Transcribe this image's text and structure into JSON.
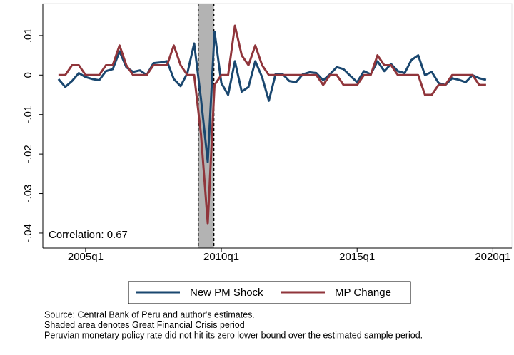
{
  "chart_data": {
    "type": "line",
    "x": [
      176,
      177,
      178,
      179,
      180,
      181,
      182,
      183,
      184,
      185,
      186,
      187,
      188,
      189,
      190,
      191,
      192,
      193,
      194,
      195,
      196,
      197,
      198,
      199,
      200,
      201,
      202,
      203,
      204,
      205,
      206,
      207,
      208,
      209,
      210,
      211,
      212,
      213,
      214,
      215,
      216,
      217,
      218,
      219,
      220,
      221,
      222,
      223,
      224,
      225,
      226,
      227,
      228,
      229,
      230,
      231,
      232,
      233,
      234,
      235,
      236,
      237,
      238,
      239
    ],
    "series": [
      {
        "name": "New PM Shock",
        "color": "#1a476f",
        "values": [
          -0.001,
          -0.003,
          -0.0015,
          0.0005,
          -0.0005,
          -0.001,
          -0.0013,
          0.001,
          0.0015,
          0.006,
          0.002,
          0.0008,
          0.0012,
          0,
          0.003,
          0.0032,
          0.0035,
          -0.001,
          -0.0028,
          0.0005,
          0.008,
          -0.006,
          -0.022,
          0.011,
          -0.002,
          -0.005,
          0.0035,
          -0.0042,
          -0.003,
          0.0035,
          -0.0005,
          -0.0065,
          0.0003,
          0.0003,
          -0.0015,
          -0.0018,
          0.0002,
          0.0007,
          0.0005,
          -0.0013,
          0.0002,
          0.002,
          0.0015,
          -0.0002,
          -0.0018,
          0.001,
          0.0002,
          0.0035,
          0.001,
          0.0028,
          0.001,
          0.0005,
          0.0038,
          0.005,
          0,
          0.0008,
          -0.002,
          -0.0025,
          -0.0008,
          -0.0012,
          -0.0018,
          0,
          -0.0008,
          -0.0012
        ]
      },
      {
        "name": "MP Change",
        "color": "#90353b",
        "values": [
          0,
          0,
          0.0025,
          0.0025,
          0,
          0,
          0,
          0.0025,
          0.0025,
          0.0075,
          0.0025,
          0,
          0,
          0,
          0.0025,
          0.0025,
          0.0025,
          0.0075,
          0.0025,
          0,
          0,
          -0.015,
          -0.0375,
          -0.0025,
          0,
          0,
          0.0125,
          0.005,
          0.0025,
          0.0075,
          0.0025,
          0,
          0,
          0,
          0,
          0,
          0,
          0,
          0,
          -0.0025,
          0,
          0,
          -0.0025,
          -0.0025,
          -0.0025,
          0,
          0,
          0.005,
          0.0025,
          0.0025,
          0,
          0,
          0,
          0,
          -0.005,
          -0.005,
          -0.0025,
          -0.0025,
          0,
          0,
          0,
          0,
          -0.0025,
          -0.0025
        ]
      }
    ],
    "xlim": [
      173.7,
      242.8
    ],
    "xticks": [
      {
        "value": 180,
        "label": "2005q1"
      },
      {
        "value": 200,
        "label": "2010q1"
      },
      {
        "value": 220,
        "label": "2015q1"
      },
      {
        "value": 240,
        "label": "2020q1"
      }
    ],
    "ylim": [
      -0.0438,
      0.0181
    ],
    "yticks": [
      {
        "value": -0.04,
        "label": "-.04"
      },
      {
        "value": -0.03,
        "label": "-.03"
      },
      {
        "value": -0.02,
        "label": "-.02"
      },
      {
        "value": -0.01,
        "label": "-.01"
      },
      0,
      {
        "value": 0.01,
        "label": ".01"
      }
    ],
    "shade": [
      196.6,
      198.9
    ],
    "annotation": "Correlation: 0.67",
    "notes": [
      "Source: Central Bank of Peru and author's estimates.",
      "Shaded area denotes Great Financial Crisis period",
      "Peruvian monetary policy rate did not hit its zero lower bound over the estimated sample period."
    ]
  }
}
